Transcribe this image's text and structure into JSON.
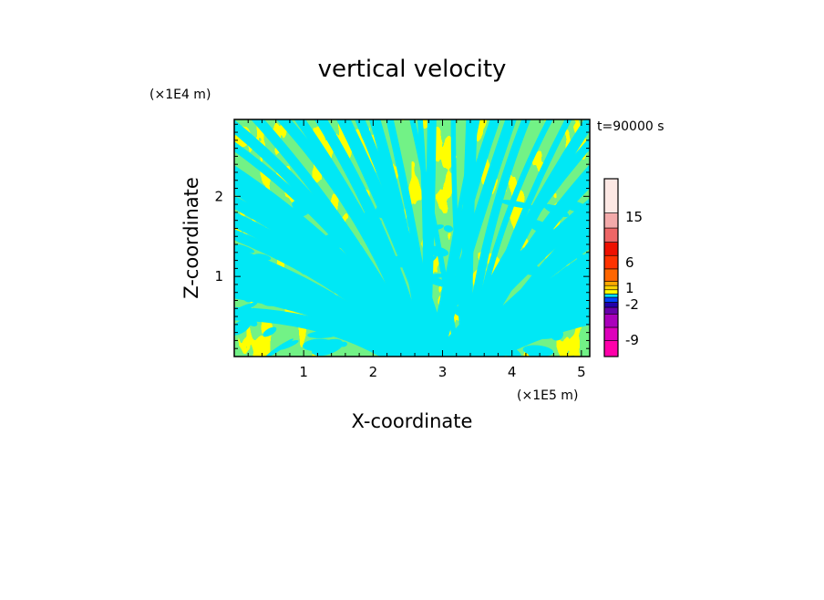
{
  "chart_data": {
    "type": "heatmap",
    "title": "vertical velocity",
    "xlabel": "X-coordinate",
    "ylabel": "Z-coordinate",
    "x_unit": "(×1E5 m)",
    "y_unit": "(×1E4 m)",
    "time_label": "t=90000 s",
    "xlim": [
      0,
      5.12
    ],
    "ylim": [
      0,
      2.96
    ],
    "x_ticks": [
      "1",
      "2",
      "3",
      "4",
      "5"
    ],
    "y_ticks": [
      "1",
      "2"
    ],
    "field_description": "alternating positive (yellow) and negative (cyan) bands of vertical velocity; wave-like striations fanning upward and outward from x≈3",
    "colorbar": {
      "levels_bottom_to_top": [
        {
          "color": "#ff00aa"
        },
        {
          "color": "#dd00bb"
        },
        {
          "color": "#aa00bb"
        },
        {
          "color": "#6600aa"
        },
        {
          "color": "#2200aa"
        },
        {
          "color": "#0044ff"
        },
        {
          "color": "#00e0ff"
        },
        {
          "color": "#ffff00"
        },
        {
          "color": "#ffd400"
        },
        {
          "color": "#ffaa00"
        },
        {
          "color": "#ff6600"
        },
        {
          "color": "#ff3300"
        },
        {
          "color": "#ee1100"
        },
        {
          "color": "#ee6666"
        },
        {
          "color": "#f3aaaa"
        },
        {
          "color": "#fde8e4"
        }
      ],
      "labels": [
        "-9",
        "-2",
        "1",
        "6",
        "15"
      ]
    },
    "colors": {
      "positive": "#ffff00",
      "negative": "#00e8f5"
    }
  }
}
